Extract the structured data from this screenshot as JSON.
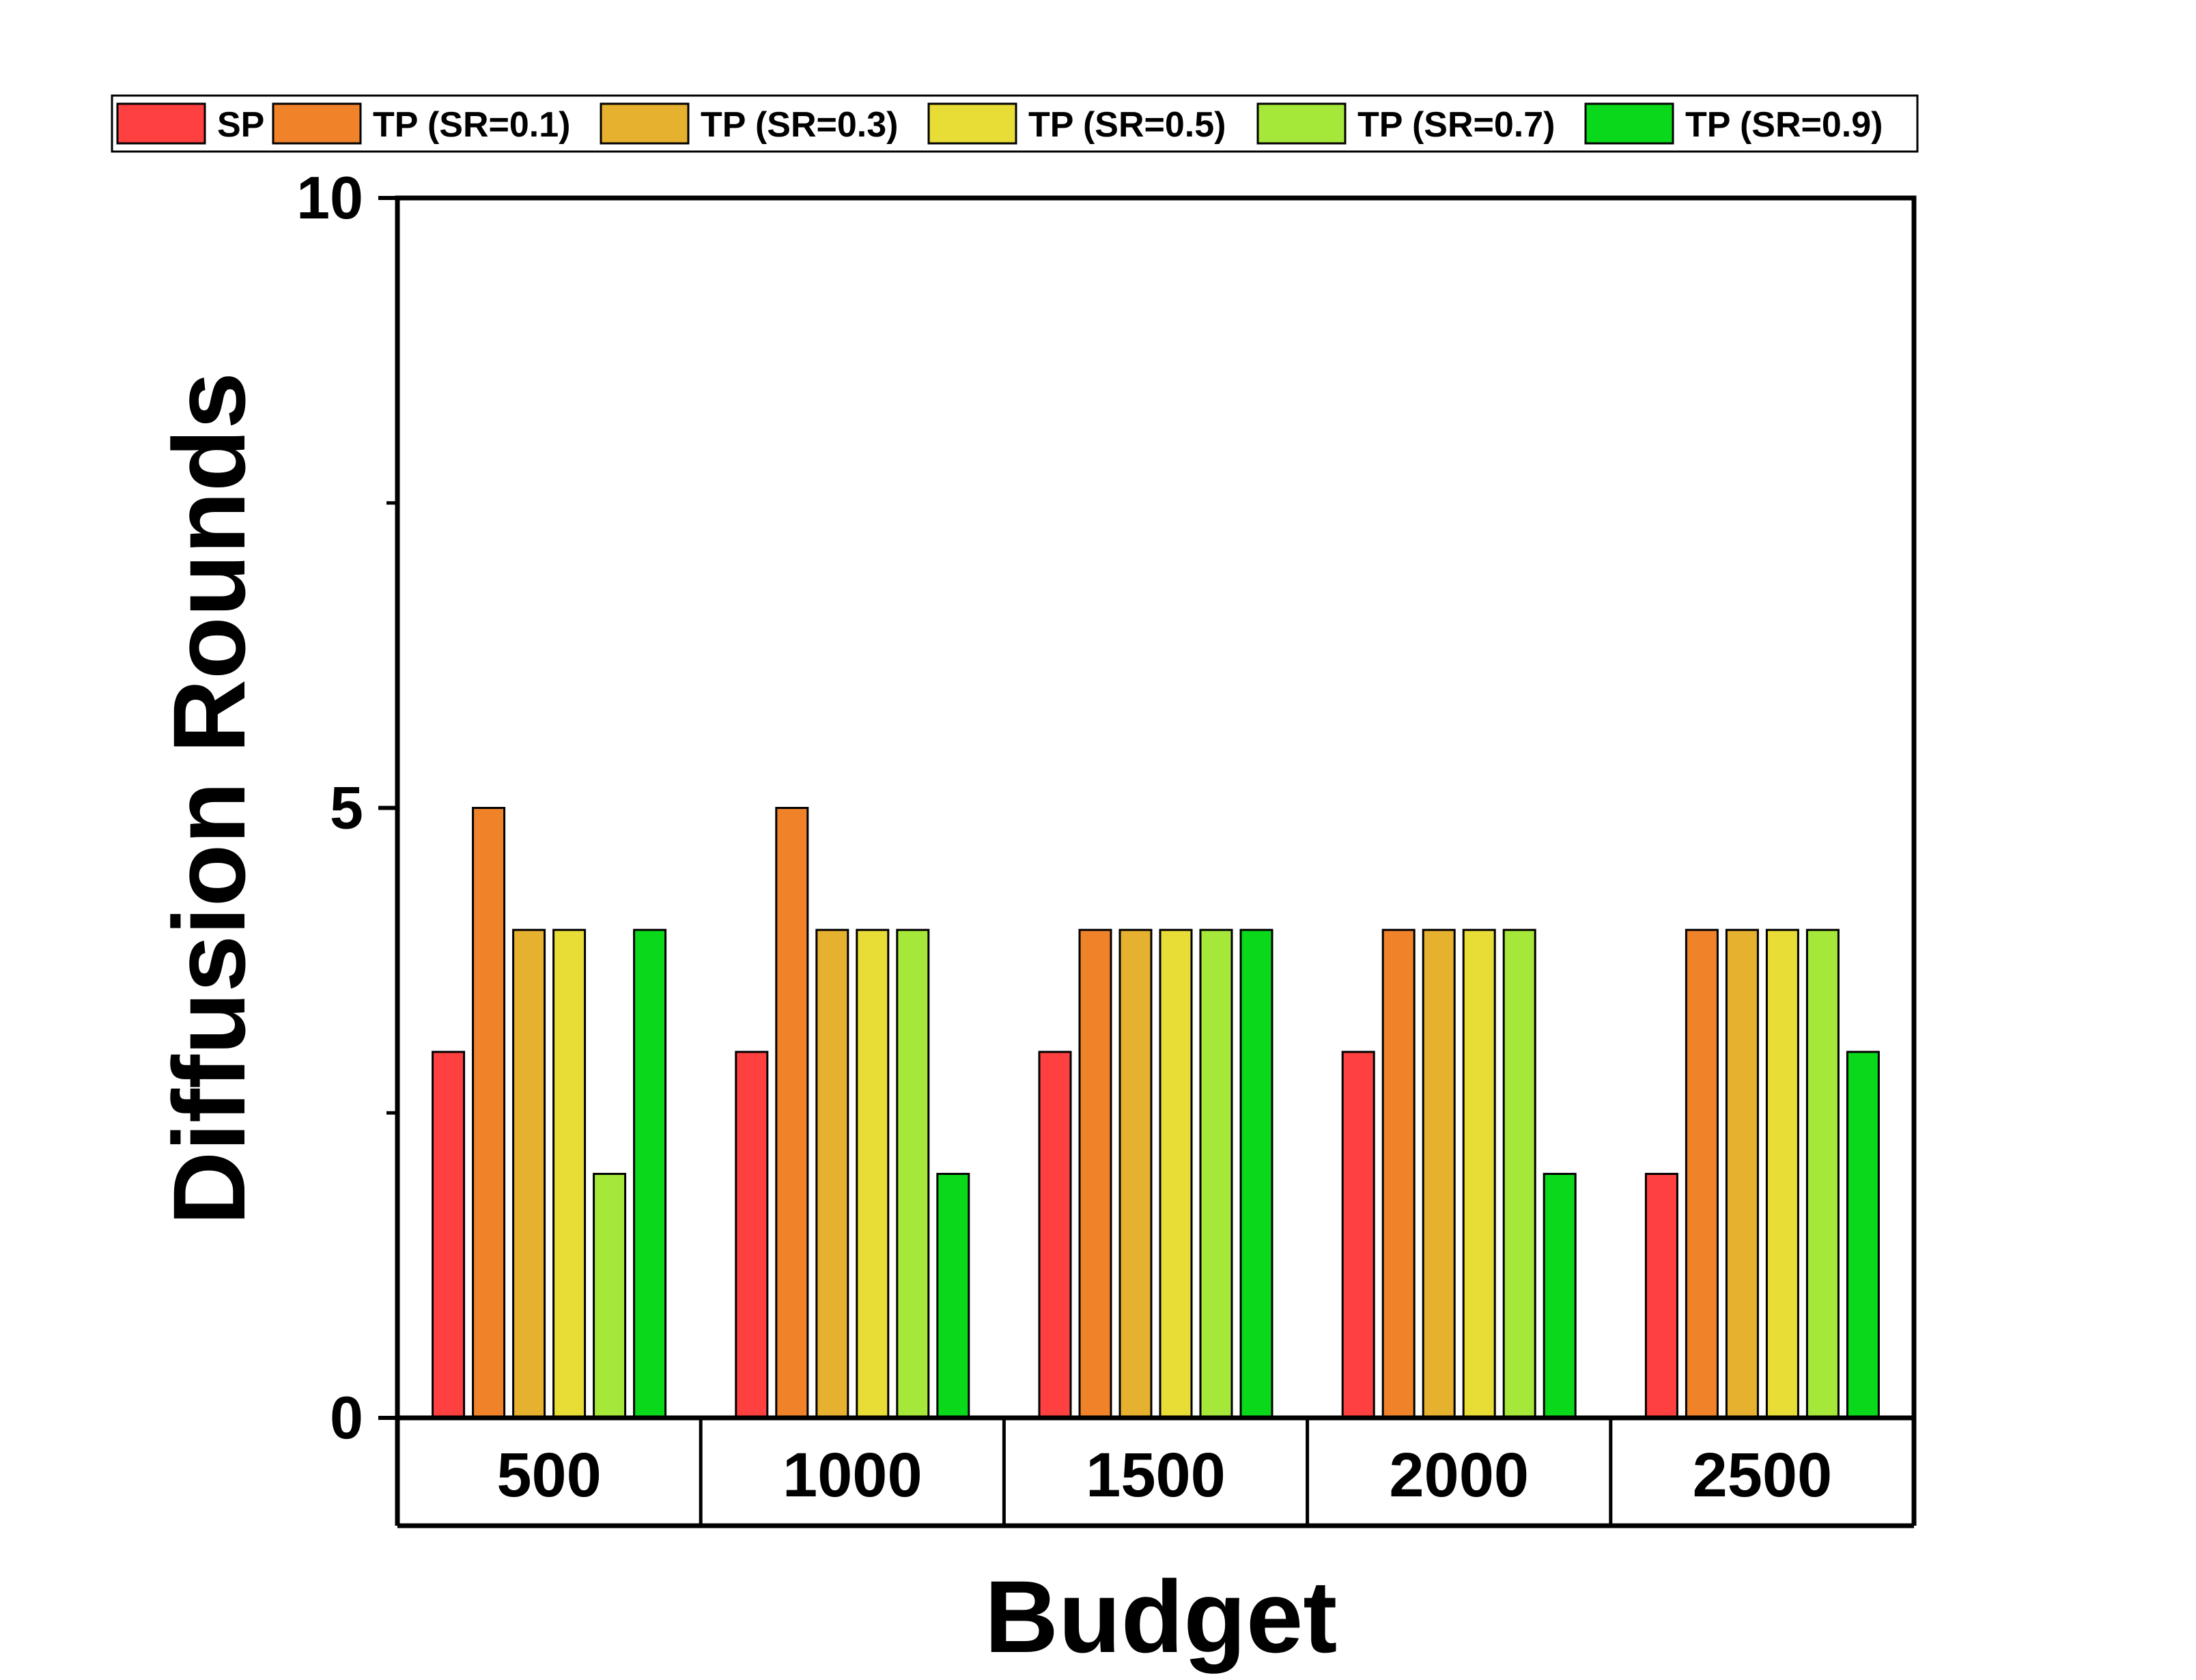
{
  "chart_data": {
    "type": "bar",
    "title": "",
    "xlabel": "Budget",
    "ylabel": "Diffusion Rounds",
    "categories": [
      "500",
      "1000",
      "1500",
      "2000",
      "2500"
    ],
    "ylim": [
      0,
      10
    ],
    "yticks": [
      "0",
      "5",
      "10"
    ],
    "grid": false,
    "legend_position": "top",
    "series": [
      {
        "name": "SP",
        "color": "#ff4040",
        "values": [
          3,
          3,
          3,
          3,
          2
        ]
      },
      {
        "name": "TP (SR=0.1)",
        "color": "#f0832a",
        "values": [
          5,
          5,
          4,
          4,
          4
        ]
      },
      {
        "name": "TP (SR=0.3)",
        "color": "#e6b12f",
        "values": [
          4,
          4,
          4,
          4,
          4
        ]
      },
      {
        "name": "TP (SR=0.5)",
        "color": "#e8dc36",
        "values": [
          4,
          4,
          4,
          4,
          4
        ]
      },
      {
        "name": "TP (SR=0.7)",
        "color": "#a6e83a",
        "values": [
          2,
          4,
          4,
          4,
          4
        ]
      },
      {
        "name": "TP (SR=0.9)",
        "color": "#0ad81a",
        "values": [
          4,
          2,
          4,
          2,
          3
        ]
      }
    ]
  }
}
